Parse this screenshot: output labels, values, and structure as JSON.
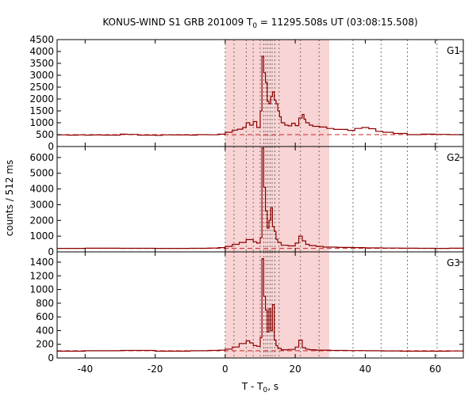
{
  "colors": {
    "curve": "#8b0000",
    "shade": "#f9d4d4",
    "background_level": "#d02020",
    "axis": "#000000",
    "grid": "#555555"
  },
  "chart_data": {
    "type": "line",
    "title": {
      "prefix": "KONUS-WIND S1 GRB 201009 T",
      "subscript": "0",
      "suffix": " = 11295.508s UT (03:08:15.508)"
    },
    "xlabel": {
      "prefix": "T - T",
      "subscript": "0",
      "suffix": ", s"
    },
    "ylabel": "counts / 512 ms",
    "xlim": [
      -48,
      68
    ],
    "xticks": [
      -40,
      -20,
      0,
      20,
      40,
      60
    ],
    "shaded_interval": [
      0,
      29.7
    ],
    "vertical_markers": [
      0,
      2.5,
      6.0,
      8.0,
      10.0,
      11.0,
      11.6,
      12.2,
      12.8,
      13.4,
      14.2,
      15.4,
      21.5,
      26.8,
      36.5,
      44.5,
      52.0,
      60.5
    ],
    "panels": [
      {
        "label": "G1",
        "ylim": [
          0,
          4500
        ],
        "yticks": [
          0,
          500,
          1000,
          1500,
          2000,
          2500,
          3000,
          3500,
          4000,
          4500
        ],
        "background": 500,
        "x": [
          -48,
          -45,
          -42,
          -40,
          -38,
          -35,
          -30,
          -28,
          -25,
          -20,
          -18,
          -15,
          -10,
          -8,
          -5,
          -2,
          0,
          2,
          3.5,
          5,
          6,
          7,
          8,
          9,
          10,
          10.5,
          11,
          11.5,
          12,
          12.5,
          13,
          13.5,
          14,
          14.5,
          15,
          15.5,
          16,
          17,
          18,
          19,
          20,
          21,
          22,
          22.5,
          23,
          24,
          25,
          27,
          29,
          31,
          33,
          35,
          37,
          39,
          41,
          43,
          45,
          48,
          52,
          56,
          60,
          64,
          68
        ],
        "values": [
          490,
          480,
          490,
          480,
          485,
          480,
          520,
          510,
          480,
          470,
          490,
          485,
          480,
          500,
          495,
          520,
          600,
          690,
          730,
          800,
          1000,
          900,
          1050,
          800,
          1500,
          3800,
          3100,
          2700,
          1900,
          1800,
          2100,
          2300,
          1950,
          1800,
          1500,
          1250,
          1000,
          900,
          870,
          980,
          880,
          1200,
          1350,
          1150,
          1000,
          900,
          850,
          820,
          760,
          720,
          720,
          680,
          760,
          800,
          750,
          640,
          600,
          550,
          500,
          520,
          510,
          500,
          490
        ]
      },
      {
        "label": "G2",
        "ylim": [
          0,
          6700
        ],
        "yticks": [
          0,
          1000,
          2000,
          3000,
          4000,
          5000,
          6000
        ],
        "background": 220,
        "x": [
          -48,
          -40,
          -30,
          -20,
          -10,
          -5,
          -2,
          0,
          2,
          4,
          6,
          8,
          9,
          10,
          10.5,
          11,
          11.5,
          12,
          12.5,
          13,
          13.5,
          14,
          14.5,
          15,
          16,
          18,
          20,
          21,
          22,
          23,
          24,
          26,
          28,
          32,
          36,
          40,
          45,
          50,
          55,
          60,
          64,
          68
        ],
        "values": [
          220,
          230,
          225,
          220,
          225,
          240,
          270,
          350,
          480,
          600,
          780,
          640,
          560,
          900,
          6600,
          4100,
          2600,
          1500,
          2000,
          2800,
          1600,
          1300,
          800,
          600,
          420,
          380,
          560,
          1000,
          700,
          480,
          400,
          350,
          300,
          280,
          270,
          250,
          240,
          230,
          225,
          220,
          230,
          220
        ]
      },
      {
        "label": "G3",
        "ylim": [
          0,
          1550
        ],
        "yticks": [
          0,
          200,
          400,
          600,
          800,
          1000,
          1200,
          1400
        ],
        "background": 105,
        "x": [
          -48,
          -40,
          -30,
          -20,
          -10,
          -5,
          -2,
          0,
          2,
          4,
          6,
          7,
          8,
          9,
          10,
          10.5,
          11,
          11.5,
          12,
          12.5,
          13,
          13.5,
          14,
          14.5,
          15,
          16,
          18,
          20,
          21,
          22,
          23,
          24,
          26,
          30,
          35,
          40,
          45,
          50,
          55,
          60,
          64,
          68
        ],
        "values": [
          100,
          105,
          110,
          100,
          105,
          110,
          115,
          130,
          160,
          210,
          250,
          220,
          180,
          170,
          300,
          1450,
          900,
          700,
          380,
          720,
          400,
          780,
          260,
          180,
          140,
          120,
          125,
          160,
          260,
          150,
          130,
          120,
          115,
          110,
          108,
          105,
          103,
          100,
          100,
          100,
          102,
          100
        ]
      }
    ]
  }
}
